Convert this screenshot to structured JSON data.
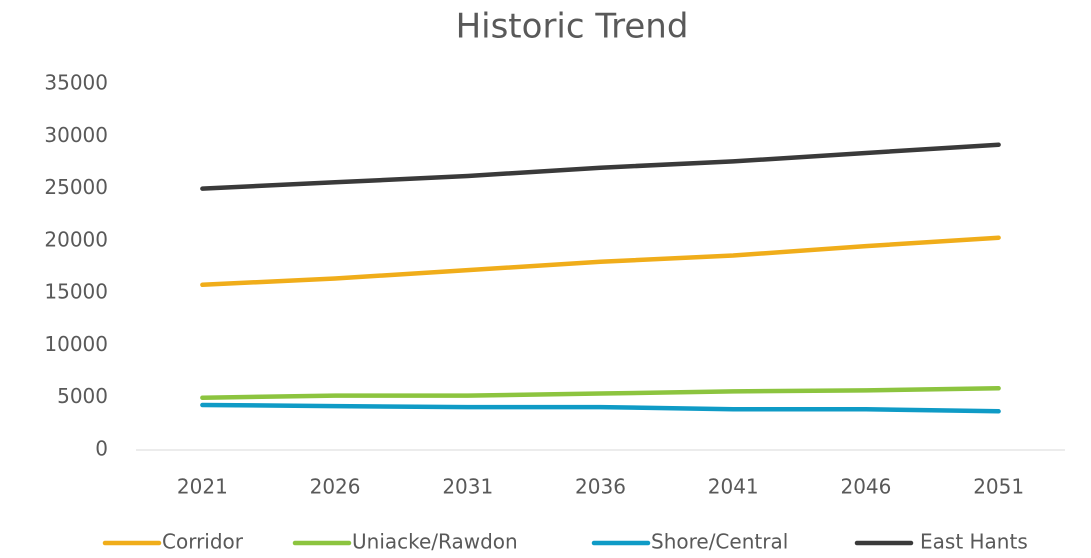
{
  "chart_data": {
    "type": "line",
    "title": "Historic Trend",
    "categories": [
      "2021",
      "2026",
      "2031",
      "2036",
      "2041",
      "2046",
      "2051"
    ],
    "series": [
      {
        "name": "Corridor",
        "color": "#f0ad1a",
        "values": [
          15800,
          16400,
          17200,
          18000,
          18600,
          19500,
          20300
        ]
      },
      {
        "name": "Uniacke/Rawdon",
        "color": "#8cc43f",
        "values": [
          5000,
          5200,
          5200,
          5400,
          5600,
          5700,
          5900
        ]
      },
      {
        "name": "Shore/Central",
        "color": "#0f9bc6",
        "values": [
          4300,
          4200,
          4100,
          4100,
          3900,
          3900,
          3700
        ]
      },
      {
        "name": "East Hants",
        "color": "#3a3a3a",
        "values": [
          25000,
          25600,
          26200,
          27000,
          27600,
          28400,
          29200
        ]
      }
    ],
    "ylim": [
      0,
      35000
    ],
    "yticks": [
      0,
      5000,
      10000,
      15000,
      20000,
      25000,
      30000,
      35000
    ],
    "grid": false,
    "legend": "bottom"
  }
}
